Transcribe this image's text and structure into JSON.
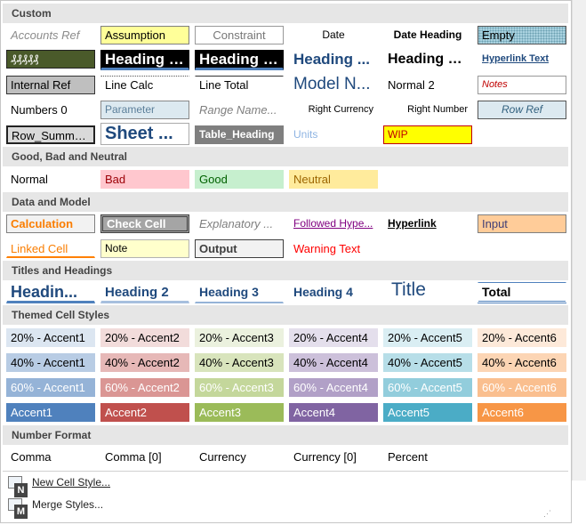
{
  "sections": {
    "custom": "Custom",
    "good_bad": "Good, Bad and Neutral",
    "data_model": "Data and Model",
    "titles": "Titles and Headings",
    "themed": "Themed Cell Styles",
    "number": "Number Format"
  },
  "custom": [
    "Accounts Ref",
    "Assumption",
    "Constraint",
    "Date",
    "Date Heading",
    "Empty",
    "₰₰₰₰₰",
    "Heading 1...",
    "Heading 1...",
    "Heading ...",
    "Heading 3 ...",
    "Hyperlink Text",
    "Internal Ref",
    "Line Calc",
    "Line Total",
    "Model N...",
    "Normal 2",
    "Notes",
    "Numbers 0",
    "Parameter",
    "Range Name...",
    "Right Currency",
    "Right Number",
    "Row Ref",
    "Row_Summary",
    "Sheet ...",
    "Table_Heading",
    "Units",
    "WIP"
  ],
  "good_bad": [
    "Normal",
    "Bad",
    "Good",
    "Neutral"
  ],
  "data_model": [
    "Calculation",
    "Check Cell",
    "Explanatory ...",
    "Followed Hype...",
    "Hyperlink",
    "Input",
    "Linked Cell",
    "Note",
    "Output",
    "Warning Text"
  ],
  "titles": [
    "Headin...",
    "Heading 2",
    "Heading 3",
    "Heading 4",
    "Title",
    "Total"
  ],
  "themed": {
    "row20": [
      "20% - Accent1",
      "20% - Accent2",
      "20% - Accent3",
      "20% - Accent4",
      "20% - Accent5",
      "20% - Accent6"
    ],
    "row40": [
      "40% - Accent1",
      "40% - Accent2",
      "40% - Accent3",
      "40% - Accent4",
      "40% - Accent5",
      "40% - Accent6"
    ],
    "row60": [
      "60% - Accent1",
      "60% - Accent2",
      "60% - Accent3",
      "60% - Accent4",
      "60% - Accent5",
      "60% - Accent6"
    ],
    "accent": [
      "Accent1",
      "Accent2",
      "Accent3",
      "Accent4",
      "Accent5",
      "Accent6"
    ]
  },
  "number": [
    "Comma",
    "Comma [0]",
    "Currency",
    "Currency [0]",
    "Percent"
  ],
  "menu": {
    "new_style": "New Cell Style...",
    "new_style_key": "N",
    "merge_styles": "Merge Styles...",
    "merge_styles_key": "M"
  },
  "colors": {
    "accent1": "#4f81bd",
    "accent2": "#c0504d",
    "accent3": "#9bbb59",
    "accent4": "#8064a2",
    "accent5": "#4bacc6",
    "accent6": "#f79646"
  }
}
